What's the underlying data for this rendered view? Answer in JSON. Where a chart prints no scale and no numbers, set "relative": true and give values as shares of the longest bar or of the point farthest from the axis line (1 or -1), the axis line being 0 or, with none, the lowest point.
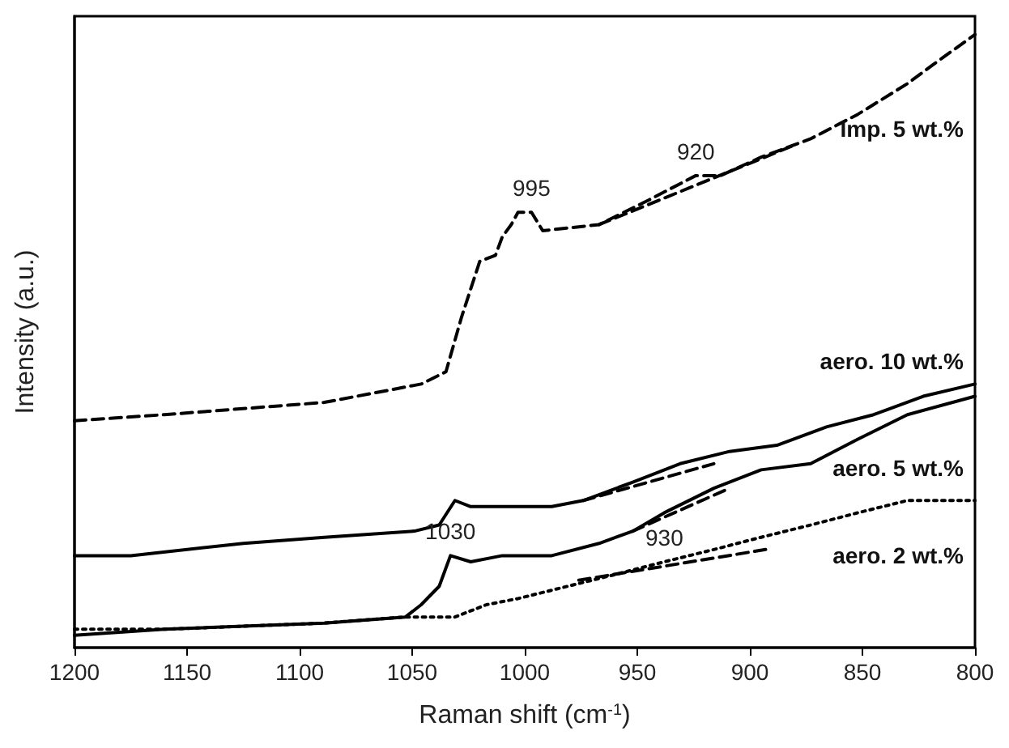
{
  "chart_data": {
    "type": "line",
    "xlabel": "Raman shift (cm$^{-1}$)",
    "ylabel": "Intensity (a.u.)",
    "relative": true,
    "xlim": [
      1200,
      800
    ],
    "xticks": [
      1200,
      1150,
      1100,
      1050,
      1000,
      950,
      900,
      850,
      800
    ],
    "legend": false,
    "grid": false,
    "marker": "none",
    "series": [
      {
        "name": "Imp. 5 wt.%",
        "color": "#000000",
        "line_style": "dashed",
        "x": [
          1200,
          1160,
          1089,
          1046,
          1035,
          1028,
          1020,
          1013,
          1010,
          1006,
          1003,
          997,
          992,
          967,
          945,
          924,
          913,
          895,
          873,
          852,
          830,
          819,
          800
        ],
        "values": [
          0.37,
          0.38,
          0.4,
          0.43,
          0.45,
          0.54,
          0.63,
          0.64,
          0.67,
          0.69,
          0.71,
          0.71,
          0.68,
          0.69,
          0.73,
          0.77,
          0.77,
          0.8,
          0.83,
          0.87,
          0.92,
          0.95,
          1.0
        ]
      },
      {
        "color": "#000000",
        "line_style": "dashed",
        "x": [
          967,
          880
        ],
        "values": [
          0.69,
          0.82
        ]
      },
      {
        "name": "aero. 10 wt.%",
        "color": "#000000",
        "line_style": "solid",
        "x": [
          1200,
          1175,
          1125,
          1089,
          1049,
          1038,
          1031,
          1024,
          1010,
          988,
          974,
          952,
          931,
          909,
          888,
          866,
          845,
          823,
          800
        ],
        "values": [
          0.15,
          0.15,
          0.17,
          0.18,
          0.19,
          0.2,
          0.24,
          0.23,
          0.23,
          0.23,
          0.24,
          0.27,
          0.3,
          0.32,
          0.33,
          0.36,
          0.38,
          0.41,
          0.43
        ]
      },
      {
        "color": "#000000",
        "line_style": "dashed",
        "x": [
          974,
          916
        ],
        "values": [
          0.24,
          0.3
        ]
      },
      {
        "name": "aero. 5 wt.%",
        "color": "#000000",
        "line_style": "solid",
        "x": [
          1200,
          1160,
          1089,
          1053,
          1046,
          1038,
          1033,
          1024,
          1010,
          988,
          967,
          952,
          938,
          916,
          895,
          873,
          852,
          830,
          800
        ],
        "values": [
          0.02,
          0.03,
          0.04,
          0.05,
          0.07,
          0.1,
          0.15,
          0.14,
          0.15,
          0.15,
          0.17,
          0.19,
          0.22,
          0.26,
          0.29,
          0.3,
          0.34,
          0.38,
          0.41
        ]
      },
      {
        "color": "#000000",
        "line_style": "dashed",
        "x": [
          952,
          909
        ],
        "values": [
          0.19,
          0.26
        ]
      },
      {
        "name": "aero. 2 wt.%",
        "color": "#000000",
        "line_style": "dotted",
        "x": [
          1200,
          1160,
          1089,
          1053,
          1031,
          1017,
          1003,
          981,
          959,
          938,
          916,
          895,
          873,
          852,
          830,
          800
        ],
        "values": [
          0.03,
          0.03,
          0.04,
          0.05,
          0.05,
          0.07,
          0.08,
          0.1,
          0.12,
          0.14,
          0.16,
          0.18,
          0.2,
          0.22,
          0.24,
          0.24
        ]
      },
      {
        "color": "#000000",
        "line_style": "dashed",
        "x": [
          976,
          893
        ],
        "values": [
          0.11,
          0.16
        ]
      }
    ],
    "annotations": [
      {
        "text": "995",
        "x": 997,
        "y": 0.71
      },
      {
        "text": "920",
        "x": 924,
        "y": 0.77
      },
      {
        "text": "1030",
        "x": 1033,
        "y": 0.15
      },
      {
        "text": "930",
        "x": 938,
        "y": 0.14
      }
    ]
  }
}
